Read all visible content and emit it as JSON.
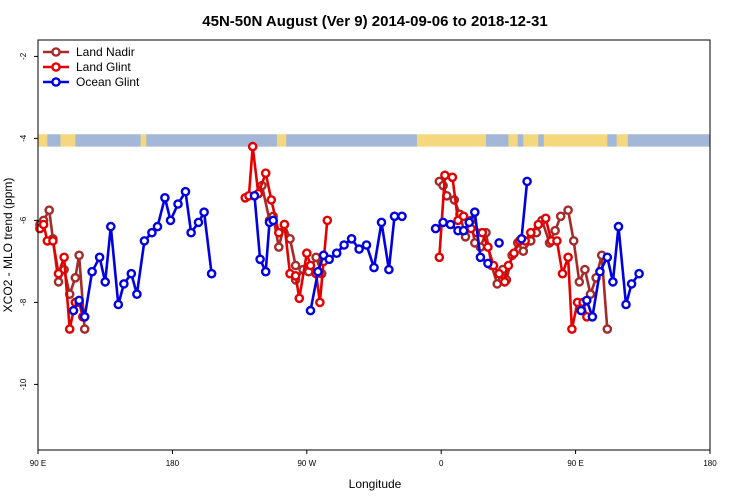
{
  "chart_data": {
    "type": "line",
    "title": "45N-50N August (Ver 9)   2014-09-06 to 2018-12-31",
    "xlabel": "Longitude",
    "ylabel": "XCO2 - MLO trend (ppm)",
    "xlim": [
      90,
      450
    ],
    "ylim": [
      -11.6,
      -1.6
    ],
    "x_ticks": [
      {
        "value": 90,
        "label": "90 E"
      },
      {
        "value": 162,
        "label": "180"
      },
      {
        "value": 234,
        "label": "90 W"
      },
      {
        "value": 306,
        "label": "0"
      },
      {
        "value": 378,
        "label": "90 E"
      },
      {
        "value": 450,
        "label": "180"
      }
    ],
    "y_ticks": [
      {
        "value": -2,
        "label": "-2"
      },
      {
        "value": -4,
        "label": "-4"
      },
      {
        "value": -6,
        "label": "-6"
      },
      {
        "value": -8,
        "label": "-8"
      },
      {
        "value": -10,
        "label": "-10"
      }
    ],
    "legend_position": "top-left",
    "land_band": {
      "y_top": -3.9,
      "y_bottom": -4.2,
      "land_color": "#F5D77E",
      "ocean_color": "#A3B8D8"
    },
    "series": [
      {
        "name": "Land Nadir",
        "color": "#A52A2A",
        "points": [
          [
            91,
            -6.1
          ],
          [
            93,
            -6.0
          ],
          [
            96,
            -5.75
          ],
          [
            98,
            -6.45
          ],
          [
            101,
            -7.5
          ],
          [
            104,
            -7.2
          ],
          [
            107,
            -7.8
          ],
          [
            110,
            -7.4
          ],
          [
            112,
            -6.85
          ],
          [
            115,
            -8.65
          ],
          null,
          [
            210,
            -5.15
          ],
          [
            214,
            -6.0
          ],
          [
            216,
            -5.9
          ],
          [
            219,
            -6.65
          ],
          [
            222,
            -6.1
          ],
          [
            225,
            -6.45
          ],
          [
            228,
            -7.1
          ],
          null,
          [
            228,
            -7.45
          ],
          [
            232,
            -7.2
          ],
          [
            235,
            -7.25
          ],
          [
            239,
            -6.9
          ],
          [
            242,
            -7.3
          ],
          null,
          [
            305,
            -5.05
          ],
          [
            307,
            -5.15
          ],
          [
            309,
            -5.4
          ],
          [
            313,
            -5.5
          ],
          [
            316,
            -5.85
          ],
          [
            319,
            -6.4
          ],
          [
            322,
            -6.0
          ],
          [
            324,
            -6.55
          ],
          [
            327,
            -6.65
          ],
          [
            330,
            -6.3
          ],
          [
            333,
            -7.1
          ],
          [
            336,
            -7.55
          ],
          [
            339,
            -7.2
          ],
          [
            341,
            -7.45
          ],
          [
            344,
            -6.85
          ],
          [
            347,
            -6.55
          ],
          [
            350,
            -6.75
          ],
          [
            354,
            -6.5
          ],
          [
            357,
            -6.3
          ],
          [
            360,
            -6.0
          ],
          [
            364,
            -6.55
          ],
          [
            367,
            -6.25
          ],
          [
            370,
            -5.9
          ],
          [
            374,
            -5.75
          ],
          [
            377,
            -6.5
          ],
          [
            380,
            -7.5
          ],
          [
            383,
            -7.2
          ],
          [
            386,
            -7.8
          ],
          [
            389,
            -7.4
          ],
          [
            392,
            -6.85
          ],
          [
            395,
            -8.65
          ]
        ]
      },
      {
        "name": "Land Glint",
        "color": "#E50000",
        "points": [
          [
            91,
            -6.2
          ],
          [
            93,
            -6.1
          ],
          [
            95,
            -6.5
          ],
          [
            98,
            -6.5
          ],
          [
            101,
            -7.3
          ],
          [
            104,
            -6.9
          ],
          [
            107,
            -8.65
          ],
          [
            110,
            -8.0
          ],
          [
            112,
            -8.0
          ],
          [
            114,
            -8.35
          ],
          null,
          [
            201,
            -5.45
          ],
          [
            203,
            -5.4
          ],
          [
            205,
            -4.2
          ],
          [
            208,
            -5.35
          ],
          [
            212,
            -4.85
          ],
          [
            215,
            -5.5
          ],
          [
            219,
            -6.3
          ],
          [
            222,
            -6.1
          ],
          [
            225,
            -7.3
          ],
          [
            228,
            -7.35
          ],
          [
            230,
            -7.9
          ],
          [
            234,
            -6.8
          ],
          [
            236,
            -7.1
          ],
          [
            239,
            -7.3
          ],
          [
            241,
            -8.0
          ],
          [
            243,
            -7.0
          ],
          [
            245,
            -6.0
          ],
          null,
          [
            305,
            -6.9
          ],
          [
            308,
            -4.9
          ],
          [
            312,
            -4.95
          ],
          [
            315,
            -6.0
          ],
          [
            318,
            -5.9
          ],
          [
            322,
            -6.2
          ],
          [
            325,
            -6.3
          ],
          [
            328,
            -6.3
          ],
          [
            331,
            -6.65
          ],
          [
            334,
            -7.1
          ],
          [
            337,
            -7.3
          ],
          [
            340,
            -7.5
          ],
          [
            342,
            -7.1
          ],
          [
            345,
            -6.8
          ],
          [
            348,
            -6.5
          ],
          [
            351,
            -6.5
          ],
          [
            354,
            -6.3
          ],
          [
            358,
            -6.1
          ],
          [
            362,
            -5.95
          ],
          [
            365,
            -6.5
          ],
          [
            368,
            -6.5
          ],
          [
            371,
            -7.3
          ],
          [
            374,
            -6.9
          ],
          [
            376,
            -8.65
          ],
          [
            379,
            -8.0
          ],
          [
            382,
            -8.0
          ],
          [
            384,
            -8.35
          ]
        ]
      },
      {
        "name": "Ocean Glint",
        "color": "#0000E0",
        "points": [
          [
            109,
            -8.2
          ],
          [
            112,
            -7.95
          ],
          [
            115,
            -8.35
          ],
          [
            119,
            -7.25
          ],
          [
            123,
            -6.9
          ],
          [
            126,
            -7.5
          ],
          [
            129,
            -6.15
          ],
          [
            133,
            -8.05
          ],
          [
            136,
            -7.55
          ],
          [
            140,
            -7.3
          ],
          [
            143,
            -7.8
          ],
          [
            147,
            -6.5
          ],
          [
            151,
            -6.3
          ],
          [
            154,
            -6.15
          ],
          [
            158,
            -5.45
          ],
          [
            161,
            -6.0
          ],
          [
            165,
            -5.6
          ],
          [
            169,
            -5.3
          ],
          [
            172,
            -6.3
          ],
          [
            176,
            -6.05
          ],
          [
            179,
            -5.8
          ],
          [
            183,
            -7.3
          ],
          null,
          [
            206,
            -5.4
          ],
          [
            209,
            -6.95
          ],
          [
            212,
            -7.25
          ],
          [
            214,
            -6.05
          ],
          [
            216,
            -6.0
          ],
          null,
          [
            236,
            -8.2
          ],
          [
            240,
            -7.25
          ],
          [
            243,
            -6.85
          ],
          [
            246,
            -6.95
          ],
          [
            250,
            -6.8
          ],
          [
            254,
            -6.6
          ],
          [
            258,
            -6.45
          ],
          [
            262,
            -6.7
          ],
          [
            266,
            -6.6
          ],
          [
            270,
            -7.15
          ],
          [
            274,
            -6.05
          ],
          [
            278,
            -7.2
          ],
          [
            281,
            -5.9
          ],
          [
            285,
            -5.9
          ],
          null,
          [
            303,
            -6.2
          ],
          [
            307,
            -6.05
          ],
          [
            311,
            -6.1
          ],
          [
            315,
            -6.25
          ],
          [
            318,
            -6.25
          ],
          [
            321,
            -6.05
          ],
          [
            324,
            -5.8
          ],
          [
            327,
            -6.9
          ],
          [
            331,
            -7.05
          ],
          null,
          [
            337,
            -6.55
          ],
          null,
          [
            349,
            -6.45
          ],
          [
            352,
            -5.05
          ],
          null,
          [
            381,
            -8.2
          ],
          [
            384,
            -7.95
          ],
          [
            387,
            -8.35
          ],
          [
            391,
            -7.25
          ],
          [
            395,
            -6.9
          ],
          [
            398,
            -7.5
          ],
          [
            401,
            -6.15
          ],
          [
            405,
            -8.05
          ],
          [
            408,
            -7.55
          ],
          [
            412,
            -7.3
          ]
        ]
      }
    ]
  }
}
